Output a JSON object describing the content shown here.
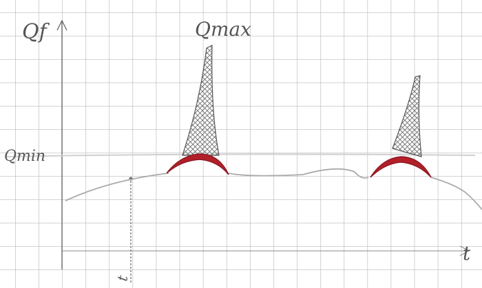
{
  "y_axis_label": "Qf",
  "peak_label": "Qmax",
  "threshold_label": "Qmin",
  "x_axis_label": "t",
  "time_marker_label": "t"
}
